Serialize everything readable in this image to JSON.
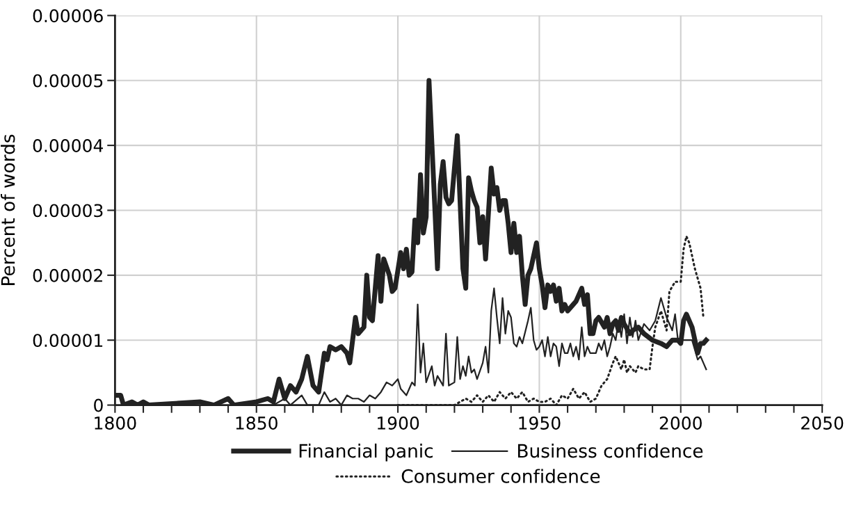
{
  "chart_data": {
    "type": "line",
    "ylabel": "Percent of words",
    "xlim": [
      1800,
      2050
    ],
    "ylim": [
      0,
      6e-05
    ],
    "xticks": [
      1800,
      {
        "value": 1810,
        "label": null
      },
      {
        "value": 1820,
        "label": null
      },
      {
        "value": 1830,
        "label": null
      },
      {
        "value": 1840,
        "label": null
      },
      1850,
      {
        "value": 1860,
        "label": null
      },
      {
        "value": 1870,
        "label": null
      },
      {
        "value": 1880,
        "label": null
      },
      {
        "value": 1890,
        "label": null
      },
      1900,
      {
        "value": 1910,
        "label": null
      },
      {
        "value": 1920,
        "label": null
      },
      {
        "value": 1930,
        "label": null
      },
      {
        "value": 1940,
        "label": null
      },
      1950,
      {
        "value": 1960,
        "label": null
      },
      {
        "value": 1970,
        "label": null
      },
      {
        "value": 1980,
        "label": null
      },
      {
        "value": 1990,
        "label": null
      },
      2000,
      {
        "value": 2010,
        "label": null
      },
      {
        "value": 2020,
        "label": null
      },
      {
        "value": 2030,
        "label": null
      },
      {
        "value": 2040,
        "label": null
      },
      2050
    ],
    "yticks": [
      0,
      {
        "value": 1e-05,
        "label": "0.00001"
      },
      {
        "value": 2e-05,
        "label": "0.00002"
      },
      {
        "value": 3e-05,
        "label": "0.00003"
      },
      {
        "value": 4e-05,
        "label": "0.00004"
      },
      {
        "value": 5e-05,
        "label": "0.00005"
      },
      {
        "value": 6e-05,
        "label": "0.00006"
      }
    ],
    "grid": true,
    "legend": "bottom",
    "marker": "none",
    "series": [
      {
        "name": "Financial panic",
        "color": "#222222",
        "line_style": "solid",
        "x": [
          1800,
          1802,
          1803,
          1806,
          1808,
          1810,
          1812,
          1830,
          1835,
          1840,
          1842,
          1850,
          1854,
          1856,
          1858,
          1860,
          1862,
          1864,
          1866,
          1868,
          1870,
          1872,
          1874,
          1875,
          1876,
          1878,
          1880,
          1882,
          1883,
          1885,
          1886,
          1888,
          1889,
          1890,
          1891,
          1893,
          1894,
          1895,
          1897,
          1898,
          1899,
          1901,
          1902,
          1903,
          1904,
          1905,
          1906,
          1907,
          1908,
          1909,
          1910,
          1911,
          1913,
          1914,
          1915,
          1916,
          1917,
          1918,
          1919,
          1921,
          1923,
          1924,
          1925,
          1926,
          1927,
          1928,
          1929,
          1930,
          1931,
          1933,
          1934,
          1935,
          1936,
          1937,
          1938,
          1939,
          1940,
          1941,
          1942,
          1943,
          1944,
          1945,
          1946,
          1947,
          1949,
          1950,
          1951,
          1952,
          1953,
          1954,
          1955,
          1956,
          1957,
          1958,
          1959,
          1960,
          1962,
          1963,
          1965,
          1966,
          1967,
          1968,
          1969,
          1970,
          1971,
          1973,
          1974,
          1975,
          1976,
          1977,
          1978,
          1979,
          1980,
          1982,
          1983,
          1985,
          1987,
          1990,
          1993,
          1995,
          1997,
          1999,
          2000,
          2001,
          2002,
          2004,
          2006,
          2007,
          2008,
          2009
        ],
        "values": [
          1.5e-06,
          1.5e-06,
          0,
          5e-07,
          0,
          5e-07,
          0,
          5e-07,
          0,
          1e-06,
          0,
          5e-07,
          1e-06,
          5e-07,
          4e-06,
          1e-06,
          3e-06,
          2e-06,
          4e-06,
          7.5e-06,
          3e-06,
          2e-06,
          8e-06,
          7e-06,
          9e-06,
          8.5e-06,
          9e-06,
          8e-06,
          6.5e-06,
          1.35e-05,
          1.1e-05,
          1.2e-05,
          2e-05,
          1.35e-05,
          1.3e-05,
          2.3e-05,
          1.6e-05,
          2.25e-05,
          2e-05,
          1.75e-05,
          1.8e-05,
          2.35e-05,
          2.1e-05,
          2.4e-05,
          2e-05,
          2.05e-05,
          2.85e-05,
          2.5e-05,
          3.55e-05,
          2.65e-05,
          2.9e-05,
          5e-05,
          3.1e-05,
          2.1e-05,
          3.4e-05,
          3.75e-05,
          3.2e-05,
          3.1e-05,
          3.15e-05,
          4.15e-05,
          2.1e-05,
          1.8e-05,
          3.5e-05,
          3.3e-05,
          3.15e-05,
          3.05e-05,
          2.5e-05,
          2.9e-05,
          2.25e-05,
          3.65e-05,
          3.25e-05,
          3.35e-05,
          3e-05,
          3.15e-05,
          3.15e-05,
          2.8e-05,
          2.35e-05,
          2.8e-05,
          2.35e-05,
          2.6e-05,
          2e-05,
          1.55e-05,
          2e-05,
          2.1e-05,
          2.5e-05,
          2.1e-05,
          1.85e-05,
          1.5e-05,
          1.85e-05,
          1.75e-05,
          1.85e-05,
          1.6e-05,
          1.8e-05,
          1.45e-05,
          1.55e-05,
          1.45e-05,
          1.55e-05,
          1.6e-05,
          1.8e-05,
          1.55e-05,
          1.7e-05,
          1.1e-05,
          1.1e-05,
          1.3e-05,
          1.35e-05,
          1.2e-05,
          1.35e-05,
          1.1e-05,
          1.25e-05,
          1.3e-05,
          1.15e-05,
          1.35e-05,
          1.25e-05,
          1.1e-05,
          1.15e-05,
          1.2e-05,
          1.1e-05,
          1e-05,
          9.5e-06,
          9e-06,
          1e-05,
          1e-05,
          9.5e-06,
          1.3e-05,
          1.4e-05,
          1.2e-05,
          8e-06,
          9.5e-06,
          9.5e-06,
          1e-05
        ]
      },
      {
        "name": "Business confidence",
        "color": "#222222",
        "line_style": "solid",
        "x": [
          1850,
          1856,
          1860,
          1862,
          1866,
          1868,
          1872,
          1874,
          1876,
          1878,
          1880,
          1882,
          1884,
          1886,
          1888,
          1890,
          1892,
          1894,
          1896,
          1898,
          1900,
          1901,
          1903,
          1904,
          1905,
          1906,
          1907,
          1908,
          1909,
          1910,
          1912,
          1913,
          1914,
          1916,
          1917,
          1918,
          1920,
          1921,
          1922,
          1923,
          1924,
          1925,
          1926,
          1927,
          1928,
          1930,
          1931,
          1932,
          1933,
          1934,
          1935,
          1936,
          1937,
          1938,
          1939,
          1940,
          1941,
          1942,
          1943,
          1944,
          1946,
          1947,
          1948,
          1949,
          1950,
          1951,
          1952,
          1953,
          1954,
          1955,
          1956,
          1957,
          1958,
          1959,
          1960,
          1961,
          1962,
          1963,
          1964,
          1965,
          1966,
          1967,
          1968,
          1970,
          1971,
          1972,
          1973,
          1974,
          1975,
          1976,
          1977,
          1978,
          1979,
          1980,
          1981,
          1982,
          1983,
          1984,
          1985,
          1987,
          1989,
          1991,
          1993,
          1995,
          1997,
          1998,
          1999,
          2000,
          2002,
          2004,
          2006,
          2007,
          2008,
          2009
        ],
        "values": [
          0,
          0,
          1e-06,
          0,
          1.5e-06,
          0,
          0,
          2e-06,
          5e-07,
          1e-06,
          0,
          1.5e-06,
          1e-06,
          1e-06,
          5e-07,
          1.5e-06,
          1e-06,
          2e-06,
          3.5e-06,
          3e-06,
          4e-06,
          2.5e-06,
          1.5e-06,
          2.5e-06,
          3.5e-06,
          3e-06,
          1.55e-05,
          5e-06,
          9.5e-06,
          3.5e-06,
          6e-06,
          3e-06,
          4.5e-06,
          3e-06,
          1.1e-05,
          3e-06,
          3.5e-06,
          1.05e-05,
          4e-06,
          6e-06,
          4.5e-06,
          7.5e-06,
          5e-06,
          5.5e-06,
          4e-06,
          6.5e-06,
          9e-06,
          5e-06,
          1.45e-05,
          1.8e-05,
          1.35e-05,
          9.5e-06,
          1.65e-05,
          1.1e-05,
          1.45e-05,
          1.35e-05,
          9.5e-06,
          9e-06,
          1.05e-05,
          9.5e-06,
          1.3e-05,
          1.5e-05,
          1e-05,
          8.5e-06,
          9e-06,
          1e-05,
          7.5e-06,
          1.05e-05,
          7.5e-06,
          9.5e-06,
          9e-06,
          6e-06,
          9.5e-06,
          8e-06,
          8e-06,
          9.5e-06,
          7.5e-06,
          9e-06,
          7e-06,
          1.2e-05,
          7.5e-06,
          9e-06,
          8e-06,
          8e-06,
          9.5e-06,
          8.5e-06,
          1e-05,
          7.5e-06,
          9e-06,
          1.1e-05,
          1e-05,
          1.3e-05,
          1.05e-05,
          1.4e-05,
          9.5e-06,
          1.35e-05,
          1.05e-05,
          1.3e-05,
          1e-05,
          1.25e-05,
          1.15e-05,
          1.3e-05,
          1.65e-05,
          1.35e-05,
          1.15e-05,
          1.4e-05,
          1e-05,
          1e-05,
          1e-05,
          1e-05,
          7e-06,
          7.5e-06,
          6.5e-06,
          5.5e-06
        ]
      },
      {
        "name": "Consumer confidence",
        "color": "#222222",
        "line_style": "dotted",
        "x": [
          1900,
          1920,
          1922,
          1924,
          1926,
          1928,
          1930,
          1932,
          1934,
          1936,
          1938,
          1940,
          1942,
          1944,
          1946,
          1948,
          1950,
          1952,
          1954,
          1956,
          1958,
          1960,
          1962,
          1964,
          1966,
          1968,
          1970,
          1972,
          1974,
          1976,
          1977,
          1979,
          1980,
          1981,
          1982,
          1984,
          1985,
          1987,
          1989,
          1990,
          1991,
          1993,
          1995,
          1996,
          1998,
          2000,
          2001,
          2002,
          2003,
          2005,
          2007,
          2008
        ],
        "values": [
          0,
          0,
          5e-07,
          1e-06,
          5e-07,
          1.5e-06,
          5e-07,
          1.5e-06,
          5e-07,
          2e-06,
          1e-06,
          2e-06,
          1e-06,
          2e-06,
          5e-07,
          1e-06,
          5e-07,
          5e-07,
          1e-06,
          0,
          1.5e-06,
          1e-06,
          2.5e-06,
          1e-06,
          2e-06,
          5e-07,
          1e-06,
          3e-06,
          4e-06,
          6.5e-06,
          7.5e-06,
          5.5e-06,
          7e-06,
          5e-06,
          6e-06,
          5e-06,
          6e-06,
          5.5e-06,
          5.5e-06,
          9e-06,
          1.2e-05,
          1.45e-05,
          1.15e-05,
          1.75e-05,
          1.9e-05,
          1.9e-05,
          2.4e-05,
          2.6e-05,
          2.5e-05,
          2.1e-05,
          1.8e-05,
          1.35e-05
        ]
      }
    ]
  }
}
